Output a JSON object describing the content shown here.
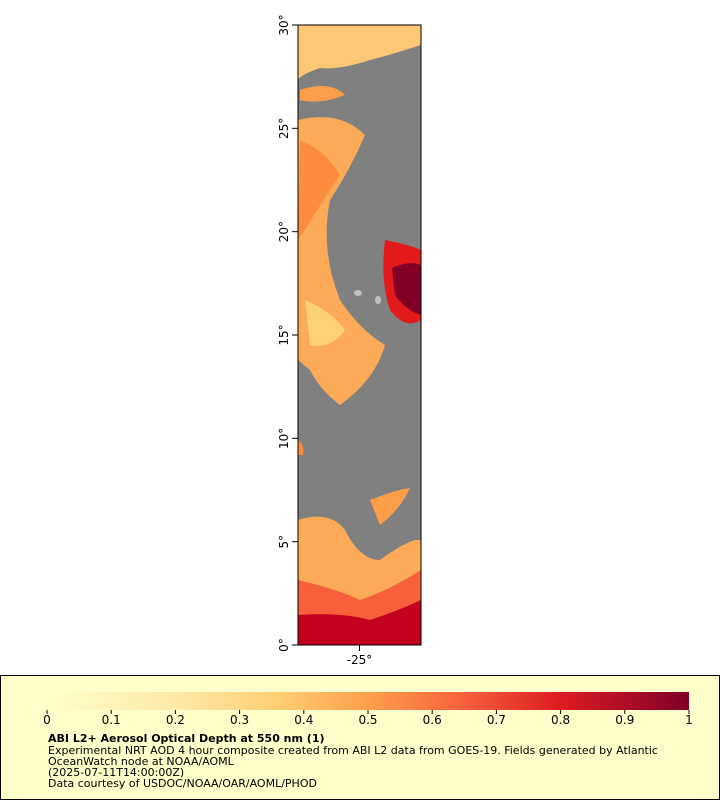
{
  "map": {
    "xlim": [
      -28,
      -22
    ],
    "ylim": [
      0,
      30
    ],
    "xticks": [
      {
        "value": -25,
        "label": "-25°"
      }
    ],
    "yticks": [
      {
        "value": 0,
        "label": "0°"
      },
      {
        "value": 5,
        "label": "5°"
      },
      {
        "value": 10,
        "label": "10°"
      },
      {
        "value": 15,
        "label": "15°"
      },
      {
        "value": 20,
        "label": "20°"
      },
      {
        "value": 25,
        "label": "25°"
      },
      {
        "value": 30,
        "label": "30°"
      }
    ]
  },
  "legend": {
    "colorbar": {
      "lim": [
        0,
        1
      ],
      "ticks": [
        0,
        0.1,
        0.2,
        0.3,
        0.4,
        0.5,
        0.6,
        0.7,
        0.8,
        0.9,
        1
      ]
    },
    "title": "ABI L2+ Aerosol Optical Depth at 550 nm (1)",
    "lines": [
      "Experimental NRT AOD 4 hour composite created from ABI L2 data from GOES-19. Fields generated by Atlantic",
      "OceanWatch node at NOAA/AOML",
      "(2025-07-11T14:00:00Z)",
      "Data courtesy of USDOC/NOAA/OAR/AOML/PHOD"
    ]
  }
}
